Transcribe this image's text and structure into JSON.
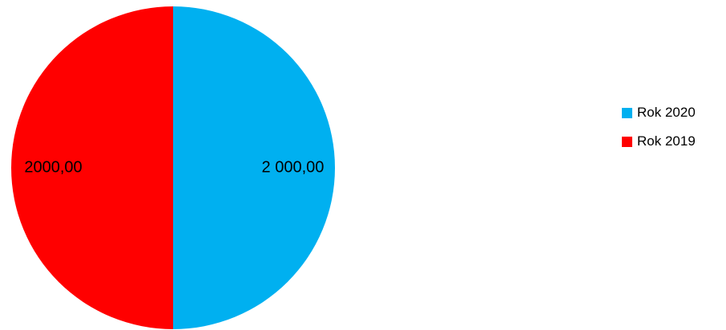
{
  "chart_data": {
    "type": "pie",
    "title": "",
    "series": [
      {
        "name": "Rok 2020",
        "value": 2000.0,
        "label": "2 000,00",
        "color": "#00B0F0"
      },
      {
        "name": "Rok 2019",
        "value": 2000.0,
        "label": "2000,00",
        "color": "#FF0000"
      }
    ],
    "start_angle_deg": 0,
    "direction": "clockwise",
    "legend_position": "right"
  }
}
